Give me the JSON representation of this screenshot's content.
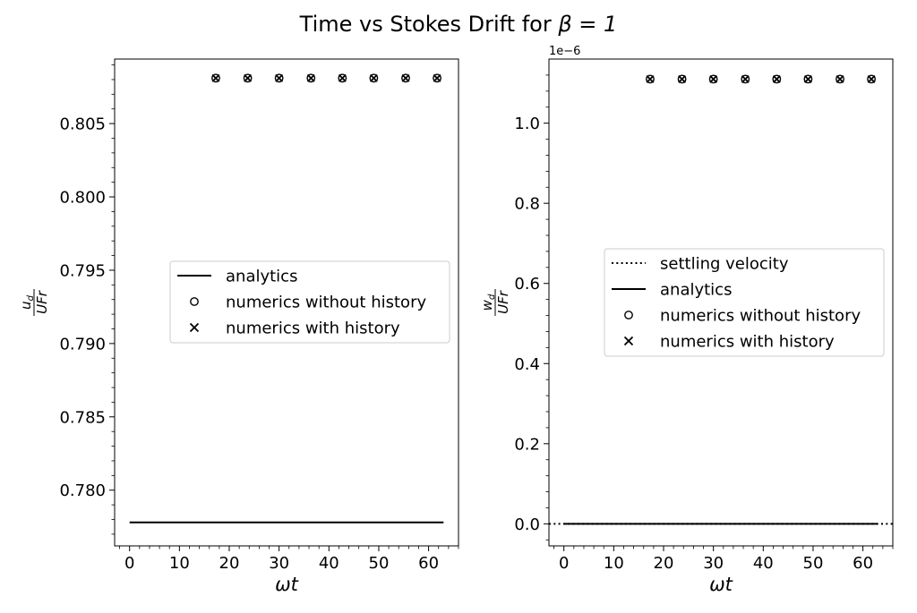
{
  "figure": {
    "title_prefix": "Time vs Stokes Drift for ",
    "title_math": "β = 1"
  },
  "chart_data": [
    {
      "type": "scatter",
      "title": "",
      "xlabel": "ωt",
      "ylabel_num": "u",
      "ylabel_num_sub": "d",
      "ylabel_den": "UFr",
      "xlim": [
        -3,
        66
      ],
      "ylim": [
        0.7762,
        0.8094
      ],
      "xticks": [
        0,
        10,
        20,
        30,
        40,
        50,
        60
      ],
      "yticks": [
        0.78,
        0.785,
        0.79,
        0.795,
        0.8,
        0.805
      ],
      "ytick_labels": [
        "0.780",
        "0.785",
        "0.790",
        "0.795",
        "0.800",
        "0.805"
      ],
      "offset_text": "",
      "legend_position": "center-right",
      "series": [
        {
          "name": "analytics",
          "kind": "line",
          "style": "solid",
          "x": [
            0,
            63
          ],
          "y": [
            0.7778,
            0.7778
          ]
        },
        {
          "name": "numerics without history",
          "kind": "marker",
          "marker": "circle",
          "x": [
            17.3,
            23.7,
            30.0,
            36.4,
            42.7,
            49.0,
            55.4,
            61.7
          ],
          "y": [
            0.8081,
            0.8081,
            0.8081,
            0.8081,
            0.8081,
            0.8081,
            0.8081,
            0.8081
          ]
        },
        {
          "name": "numerics with history",
          "kind": "marker",
          "marker": "x",
          "x": [
            17.3,
            23.7,
            30.0,
            36.4,
            42.7,
            49.0,
            55.4,
            61.7
          ],
          "y": [
            0.8081,
            0.8081,
            0.8081,
            0.8081,
            0.8081,
            0.8081,
            0.8081,
            0.8081
          ]
        }
      ]
    },
    {
      "type": "scatter",
      "title": "",
      "xlabel": "ωt",
      "ylabel_num": "w",
      "ylabel_num_sub": "d",
      "ylabel_den": "UFr",
      "xlim": [
        -3,
        66
      ],
      "ylim": [
        -0.055,
        1.16
      ],
      "xticks": [
        0,
        10,
        20,
        30,
        40,
        50,
        60
      ],
      "yticks": [
        0.0,
        0.2,
        0.4,
        0.6,
        0.8,
        1.0
      ],
      "ytick_labels": [
        "0.0",
        "0.2",
        "0.4",
        "0.6",
        "0.8",
        "1.0"
      ],
      "offset_text": "1e−6",
      "legend_position": "center-right",
      "series": [
        {
          "name": "settling velocity",
          "kind": "line",
          "style": "dotted",
          "x": [
            -3,
            66
          ],
          "y": [
            0,
            0
          ]
        },
        {
          "name": "analytics",
          "kind": "line",
          "style": "solid",
          "x": [
            0,
            63
          ],
          "y": [
            0,
            0
          ]
        },
        {
          "name": "numerics without history",
          "kind": "marker",
          "marker": "circle",
          "x": [
            17.3,
            23.7,
            30.0,
            36.4,
            42.7,
            49.0,
            55.4,
            61.7
          ],
          "y": [
            1.11,
            1.11,
            1.11,
            1.11,
            1.11,
            1.11,
            1.11,
            1.11
          ]
        },
        {
          "name": "numerics with history",
          "kind": "marker",
          "marker": "x",
          "x": [
            17.3,
            23.7,
            30.0,
            36.4,
            42.7,
            49.0,
            55.4,
            61.7
          ],
          "y": [
            1.11,
            1.11,
            1.11,
            1.11,
            1.11,
            1.11,
            1.11,
            1.11
          ]
        }
      ]
    }
  ]
}
